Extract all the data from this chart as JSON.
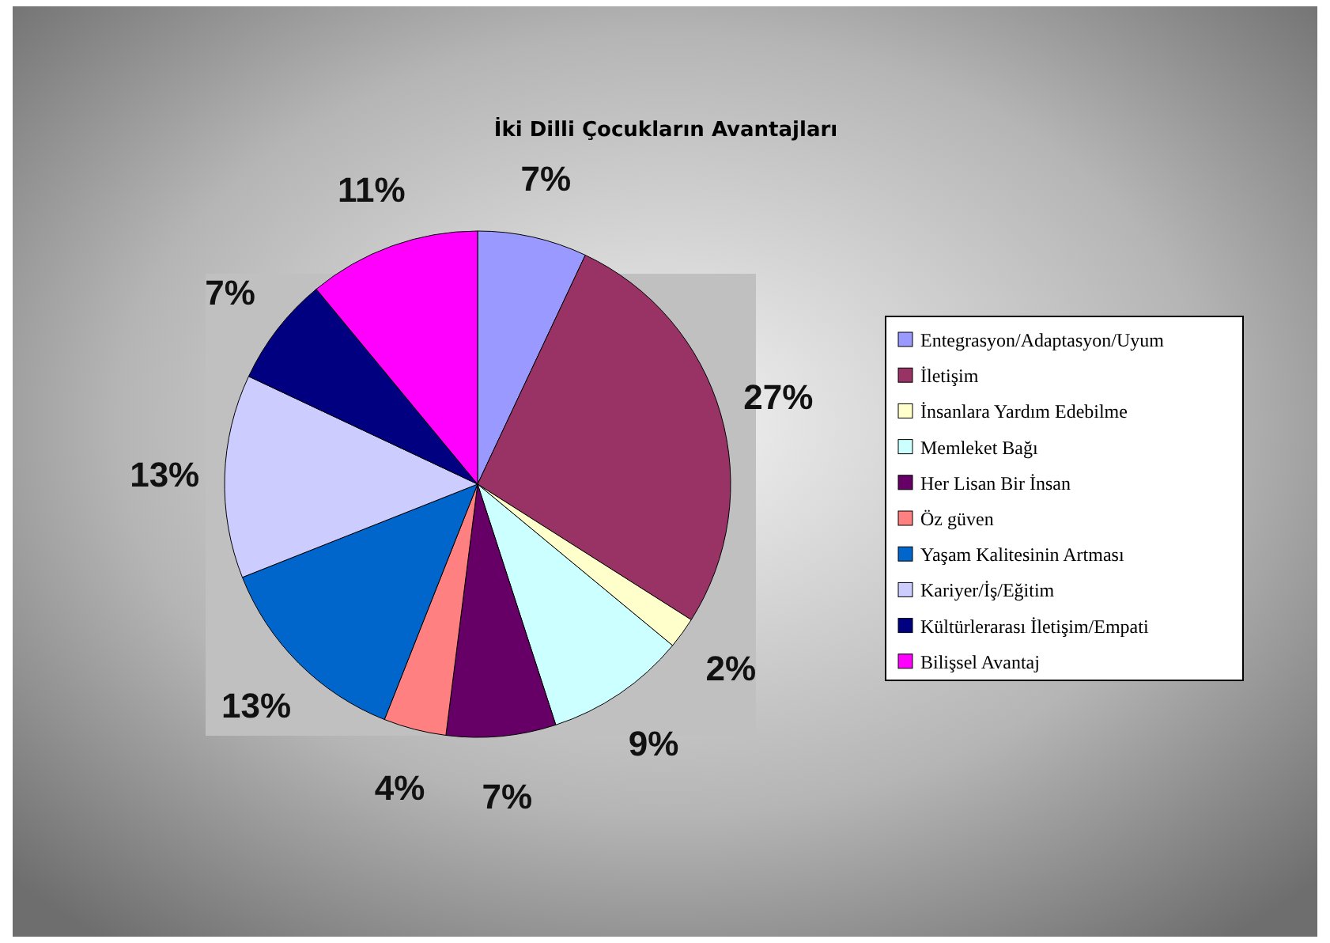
{
  "chart_data": {
    "type": "pie",
    "title": "İki Dilli Çocukların Avantajları",
    "categories": [
      "Entegrasyon/Adaptasyon/Uyum",
      "İletişim",
      "İnsanlara Yardım Edebilme",
      "Memleket Bağı",
      "Her Lisan Bir İnsan",
      "Öz güven",
      "Yaşam Kalitesinin Artması",
      "Kariyer/İş/Eğitim",
      "Kültürlerarası İletişim/Empati",
      "Bilişsel Avantaj"
    ],
    "values": [
      7,
      27,
      2,
      9,
      7,
      4,
      13,
      13,
      7,
      11
    ],
    "colors": [
      "#9999ff",
      "#993366",
      "#ffffcc",
      "#ccffff",
      "#660066",
      "#ff8080",
      "#0066cc",
      "#ccccff",
      "#000080",
      "#ff00ff"
    ],
    "value_labels": [
      "7%",
      "27%",
      "2%",
      "9%",
      "7%",
      "4%",
      "13%",
      "13%",
      "7%",
      "11%"
    ],
    "legend": "right"
  }
}
